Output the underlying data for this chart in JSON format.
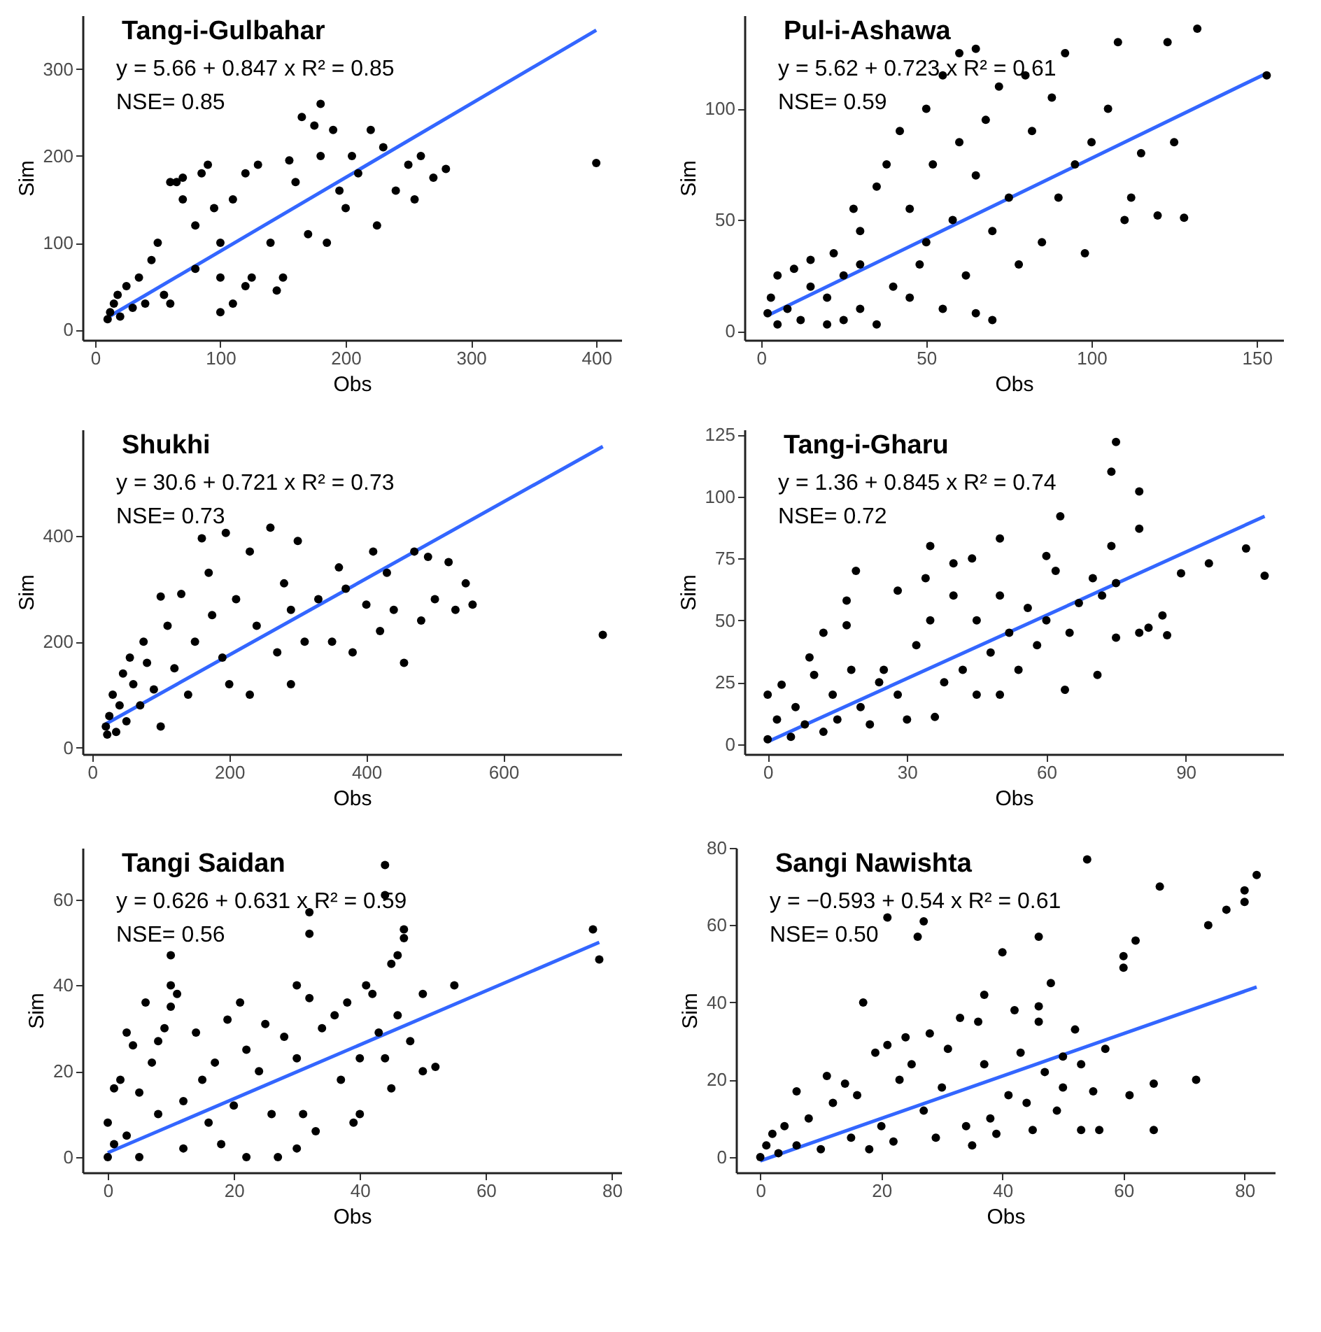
{
  "chart_data": [
    {
      "type": "scatter",
      "title": "Tang-i-Gulbahar",
      "xlabel": "Obs",
      "ylabel": "Sim",
      "annotations": [
        "y = 5.66 + 0.847 x   R² = 0.85",
        "NSE= 0.85"
      ],
      "xlim": [
        -10,
        420
      ],
      "ylim": [
        -12,
        362
      ],
      "xticks": [
        0,
        100,
        200,
        300,
        400
      ],
      "yticks": [
        0,
        100,
        200,
        300
      ],
      "series": [
        {
          "marker": "circle",
          "color": "#000000",
          "x": [
            10,
            12,
            15,
            18,
            20,
            25,
            30,
            35,
            40,
            45,
            50,
            55,
            60,
            65,
            70,
            70,
            80,
            85,
            90,
            95,
            100,
            110,
            120,
            100,
            110,
            120,
            130,
            125,
            140,
            145,
            150,
            155,
            160,
            165,
            170,
            175,
            180,
            180,
            185,
            190,
            195,
            200,
            205,
            210,
            220,
            225,
            230,
            240,
            250,
            255,
            260,
            270,
            280,
            400,
            100,
            80,
            60
          ],
          "values": [
            12,
            20,
            30,
            40,
            15,
            50,
            25,
            60,
            30,
            80,
            100,
            40,
            170,
            170,
            175,
            150,
            120,
            180,
            190,
            140,
            20,
            30,
            50,
            100,
            150,
            180,
            190,
            60,
            100,
            45,
            60,
            195,
            170,
            245,
            110,
            235,
            200,
            260,
            100,
            230,
            160,
            140,
            200,
            180,
            230,
            120,
            210,
            160,
            190,
            150,
            200,
            175,
            185,
            192,
            60,
            70,
            30
          ]
        },
        {
          "type": "line",
          "color": "#3366ff",
          "x": [
            10,
            400
          ],
          "values": [
            14,
            345
          ]
        }
      ]
    },
    {
      "type": "scatter",
      "title": "Pul-i-Ashawa",
      "xlabel": "Obs",
      "ylabel": "Sim",
      "annotations": [
        "y = 5.62 + 0.723 x   R² = 0.61",
        "NSE= 0.59"
      ],
      "xlim": [
        -5,
        158
      ],
      "ylim": [
        -4,
        142
      ],
      "xticks": [
        0,
        50,
        100,
        150
      ],
      "yticks": [
        0,
        50,
        100
      ],
      "series": [
        {
          "marker": "circle",
          "color": "#000000",
          "x": [
            2,
            3,
            5,
            5,
            8,
            10,
            12,
            15,
            15,
            20,
            20,
            22,
            25,
            28,
            30,
            30,
            35,
            35,
            38,
            40,
            42,
            45,
            48,
            50,
            50,
            52,
            55,
            55,
            58,
            60,
            60,
            62,
            65,
            65,
            68,
            70,
            70,
            72,
            75,
            78,
            80,
            82,
            85,
            88,
            90,
            92,
            95,
            98,
            100,
            105,
            108,
            110,
            112,
            115,
            120,
            123,
            125,
            128,
            132,
            153,
            25,
            45,
            65,
            30
          ],
          "values": [
            8,
            15,
            3,
            25,
            10,
            28,
            5,
            20,
            32,
            3,
            15,
            35,
            25,
            55,
            10,
            45,
            3,
            65,
            75,
            20,
            90,
            55,
            30,
            100,
            40,
            75,
            115,
            10,
            50,
            125,
            85,
            25,
            127,
            70,
            95,
            5,
            45,
            110,
            60,
            30,
            115,
            90,
            40,
            105,
            60,
            125,
            75,
            35,
            85,
            100,
            130,
            50,
            60,
            80,
            52,
            130,
            85,
            51,
            136,
            115,
            5,
            15,
            8,
            30
          ]
        },
        {
          "type": "line",
          "color": "#3366ff",
          "x": [
            2,
            153
          ],
          "values": [
            7,
            116
          ]
        }
      ]
    },
    {
      "type": "scatter",
      "title": "Shukhi",
      "xlabel": "Obs",
      "ylabel": "Sim",
      "annotations": [
        "y = 30.6 + 0.721 x   R² = 0.73",
        "NSE= 0.73"
      ],
      "xlim": [
        -14,
        772
      ],
      "ylim": [
        -12,
        600
      ],
      "xticks": [
        0,
        200,
        400,
        600
      ],
      "yticks": [
        0,
        200,
        400
      ],
      "series": [
        {
          "marker": "circle",
          "color": "#000000",
          "x": [
            20,
            22,
            25,
            30,
            35,
            40,
            45,
            50,
            55,
            60,
            70,
            75,
            80,
            90,
            100,
            100,
            110,
            120,
            130,
            140,
            150,
            160,
            170,
            175,
            190,
            195,
            200,
            210,
            230,
            230,
            240,
            260,
            270,
            280,
            290,
            290,
            300,
            310,
            330,
            350,
            360,
            370,
            380,
            400,
            410,
            420,
            430,
            440,
            455,
            470,
            480,
            490,
            500,
            520,
            530,
            545,
            555,
            745
          ],
          "values": [
            40,
            25,
            60,
            100,
            30,
            80,
            140,
            50,
            170,
            120,
            80,
            200,
            160,
            110,
            285,
            40,
            230,
            150,
            290,
            100,
            200,
            395,
            330,
            250,
            170,
            405,
            120,
            280,
            100,
            370,
            230,
            415,
            180,
            310,
            260,
            120,
            390,
            200,
            280,
            200,
            340,
            300,
            180,
            270,
            370,
            220,
            330,
            260,
            160,
            370,
            240,
            360,
            280,
            350,
            260,
            310,
            270,
            213
          ]
        },
        {
          "type": "line",
          "color": "#3366ff",
          "x": [
            20,
            745
          ],
          "values": [
            45,
            568
          ]
        }
      ]
    },
    {
      "type": "scatter",
      "title": "Tang-i-Gharu",
      "xlabel": "Obs",
      "ylabel": "Sim",
      "annotations": [
        "y = 1.36 + 0.845 x   R² = 0.74",
        "NSE= 0.72"
      ],
      "xlim": [
        -5,
        111
      ],
      "ylim": [
        -4,
        127
      ],
      "xticks": [
        0,
        30,
        60,
        90
      ],
      "yticks": [
        0,
        25,
        50,
        75,
        100,
        125
      ],
      "series": [
        {
          "marker": "circle",
          "color": "#000000",
          "x": [
            0,
            0,
            2,
            3,
            5,
            6,
            8,
            9,
            10,
            12,
            12,
            14,
            15,
            17,
            17,
            18,
            19,
            20,
            22,
            24,
            25,
            28,
            28,
            30,
            32,
            34,
            35,
            35,
            36,
            38,
            40,
            40,
            42,
            44,
            45,
            45,
            48,
            50,
            50,
            50,
            52,
            54,
            56,
            58,
            60,
            60,
            62,
            63,
            64,
            65,
            67,
            70,
            71,
            72,
            74,
            74,
            75,
            75,
            75,
            80,
            80,
            80,
            82,
            85,
            86,
            89,
            95,
            103,
            107
          ],
          "values": [
            2,
            20,
            10,
            24,
            3,
            15,
            8,
            35,
            28,
            45,
            5,
            20,
            10,
            58,
            48,
            30,
            70,
            15,
            8,
            25,
            30,
            62,
            20,
            10,
            40,
            67,
            80,
            50,
            11,
            25,
            73,
            60,
            30,
            75,
            50,
            20,
            37,
            83,
            60,
            20,
            45,
            30,
            55,
            40,
            76,
            50,
            70,
            92,
            22,
            45,
            57,
            67,
            28,
            60,
            110,
            80,
            122,
            65,
            43,
            102,
            87,
            45,
            47,
            52,
            44,
            69,
            73,
            79,
            68
          ]
        },
        {
          "type": "line",
          "color": "#3366ff",
          "x": [
            0,
            107
          ],
          "values": [
            1,
            92
          ]
        }
      ]
    },
    {
      "type": "scatter",
      "title": "Tangi Saidan",
      "xlabel": "Obs",
      "ylabel": "Sim",
      "annotations": [
        "y = 0.626 + 0.631 x   R² = 0.59",
        "NSE= 0.56"
      ],
      "xlim": [
        -4,
        81.5
      ],
      "ylim": [
        -3.6,
        72
      ],
      "xticks": [
        0,
        20,
        40,
        60,
        80
      ],
      "yticks": [
        0,
        20,
        40,
        60
      ],
      "series": [
        {
          "marker": "circle",
          "color": "#000000",
          "x": [
            0,
            0,
            1,
            1,
            2,
            3,
            3,
            4,
            5,
            5,
            6,
            7,
            8,
            8,
            9,
            10,
            10,
            10,
            11,
            12,
            12,
            14,
            15,
            16,
            17,
            18,
            19,
            20,
            21,
            22,
            22,
            24,
            25,
            26,
            27,
            28,
            30,
            30,
            30,
            31,
            32,
            32,
            32,
            33,
            34,
            36,
            37,
            38,
            39,
            40,
            40,
            41,
            42,
            43,
            44,
            44,
            45,
            45,
            46,
            46,
            47,
            47,
            48,
            50,
            50,
            52,
            55,
            77,
            78,
            44
          ],
          "values": [
            0,
            8,
            3,
            16,
            18,
            29,
            5,
            26,
            15,
            0,
            36,
            22,
            27,
            10,
            30,
            35,
            47,
            40,
            38,
            13,
            2,
            29,
            18,
            8,
            22,
            3,
            32,
            12,
            36,
            25,
            0,
            20,
            31,
            10,
            0,
            28,
            40,
            2,
            23,
            10,
            57,
            52,
            37,
            6,
            30,
            33,
            18,
            36,
            8,
            10,
            23,
            40,
            38,
            29,
            68,
            23,
            45,
            16,
            33,
            47,
            53,
            51,
            27,
            38,
            20,
            21,
            40,
            53,
            46,
            61
          ]
        },
        {
          "type": "line",
          "color": "#3366ff",
          "x": [
            0,
            78
          ],
          "values": [
            1,
            50
          ]
        }
      ]
    },
    {
      "type": "scatter",
      "title": "Sangi Nawishta",
      "xlabel": "Obs",
      "ylabel": "Sim",
      "annotations": [
        "y = −0.593 + 0.54 x   R² = 0.61",
        "NSE= 0.50"
      ],
      "xlim": [
        -4,
        85
      ],
      "ylim": [
        -4,
        80
      ],
      "xticks": [
        0,
        20,
        40,
        60,
        80
      ],
      "yticks": [
        0,
        20,
        40,
        60,
        80
      ],
      "series": [
        {
          "marker": "circle",
          "color": "#000000",
          "x": [
            0,
            1,
            2,
            3,
            4,
            6,
            6,
            8,
            10,
            11,
            12,
            14,
            15,
            16,
            17,
            18,
            19,
            20,
            21,
            21,
            22,
            23,
            24,
            25,
            26,
            27,
            27,
            28,
            29,
            30,
            31,
            33,
            34,
            35,
            36,
            37,
            37,
            38,
            39,
            40,
            41,
            42,
            43,
            44,
            45,
            46,
            46,
            46,
            47,
            48,
            49,
            50,
            50,
            52,
            53,
            53,
            54,
            55,
            56,
            57,
            60,
            60,
            61,
            62,
            65,
            65,
            66,
            72,
            74,
            77,
            80,
            80,
            82
          ],
          "values": [
            0,
            3,
            6,
            1,
            8,
            17,
            3,
            10,
            2,
            21,
            14,
            19,
            5,
            16,
            40,
            2,
            27,
            8,
            62,
            29,
            4,
            20,
            31,
            24,
            57,
            61,
            12,
            32,
            5,
            18,
            28,
            36,
            8,
            3,
            35,
            42,
            24,
            10,
            6,
            53,
            16,
            38,
            27,
            14,
            7,
            57,
            39,
            35,
            22,
            45,
            12,
            26,
            18,
            33,
            7,
            24,
            77,
            17,
            7,
            28,
            52,
            49,
            16,
            56,
            19,
            7,
            70,
            20,
            60,
            64,
            69,
            66,
            73
          ]
        },
        {
          "type": "line",
          "color": "#3366ff",
          "x": [
            0,
            82
          ],
          "values": [
            -1,
            44
          ]
        }
      ]
    }
  ]
}
